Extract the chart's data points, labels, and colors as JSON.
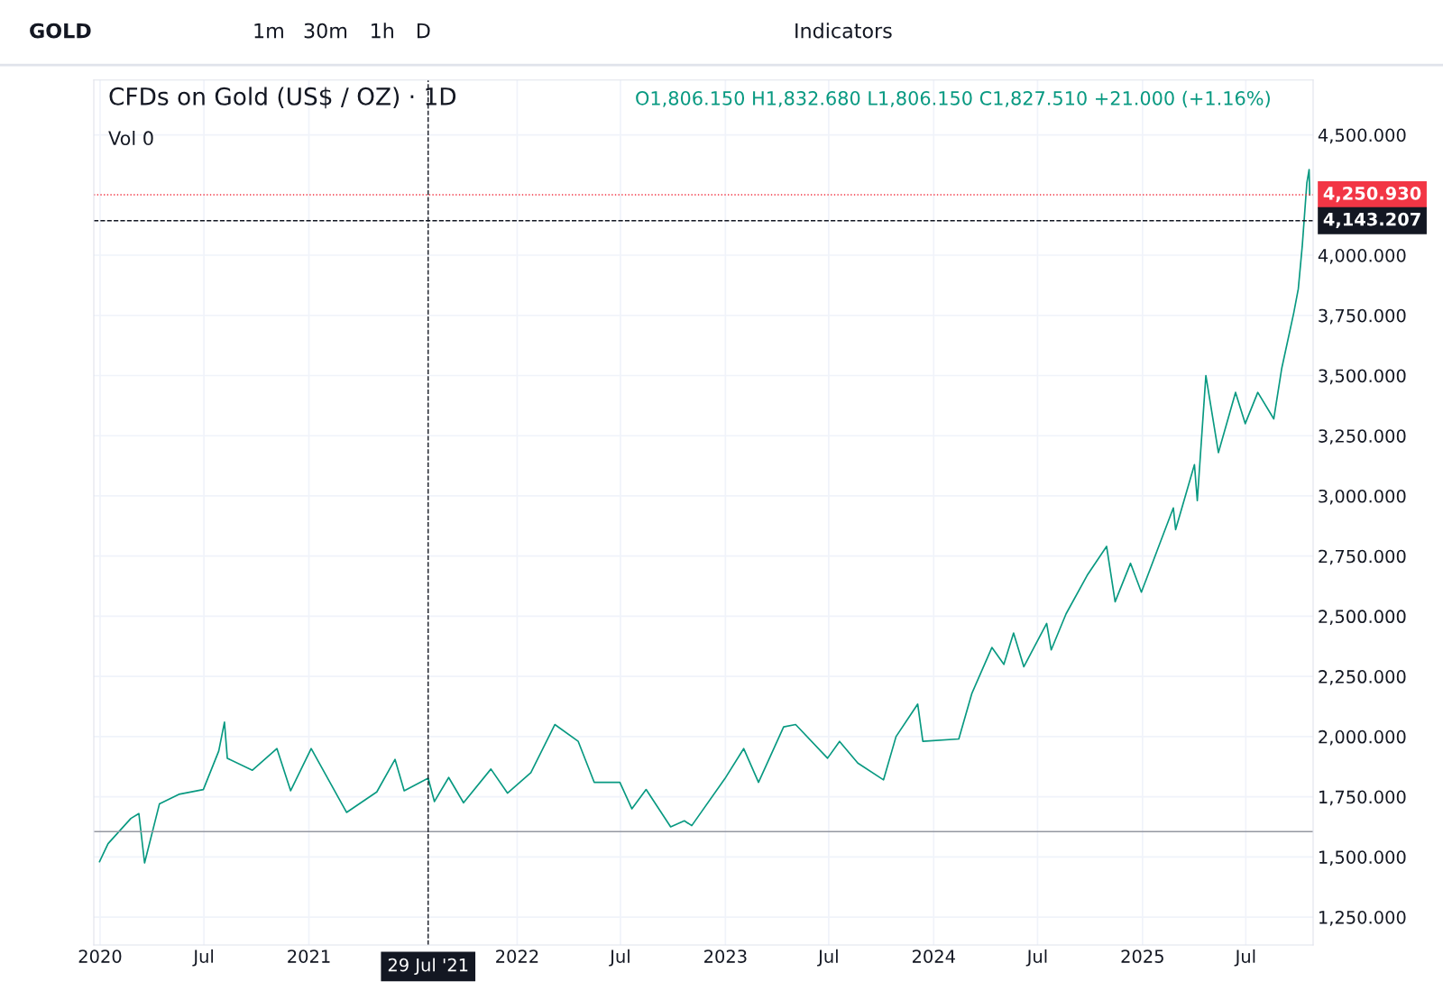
{
  "chart_data": {
    "type": "line",
    "title": "CFDs on Gold (US$ / OZ) · 1D",
    "annotations": [
      "GOLD",
      "1m",
      "30m",
      "1h",
      "D",
      "Indicators",
      "O1,806.150 H1,832.680 L1,806.150 C1,827.510 +21.000 (+1.16%)",
      "Vol 0"
    ],
    "series": [
      {
        "color": "#089981",
        "x": [
          "2019-12-31",
          "2020-01-15",
          "2020-02-24",
          "2020-03-09",
          "2020-03-19",
          "2020-04-14",
          "2020-05-18",
          "2020-06-30",
          "2020-07-27",
          "2020-08-06",
          "2020-08-11",
          "2020-09-24",
          "2020-11-06",
          "2020-11-30",
          "2021-01-05",
          "2021-03-08",
          "2021-04-30",
          "2021-06-01",
          "2021-06-17",
          "2021-07-29",
          "2021-08-09",
          "2021-09-03",
          "2021-09-29",
          "2021-11-16",
          "2021-12-15",
          "2022-01-25",
          "2022-03-08",
          "2022-04-18",
          "2022-05-16",
          "2022-06-30",
          "2022-07-21",
          "2022-08-15",
          "2022-09-27",
          "2022-10-21",
          "2022-11-03",
          "2022-12-31",
          "2023-02-02",
          "2023-02-28",
          "2023-04-13",
          "2023-05-04",
          "2023-06-29",
          "2023-07-20",
          "2023-08-21",
          "2023-10-05",
          "2023-10-27",
          "2023-12-04",
          "2023-12-13",
          "2024-02-14",
          "2024-03-08",
          "2024-04-12",
          "2024-05-03",
          "2024-05-20",
          "2024-06-07",
          "2024-07-17",
          "2024-07-25",
          "2024-08-20",
          "2024-09-26",
          "2024-10-30",
          "2024-11-14",
          "2024-12-11",
          "2024-12-30",
          "2025-01-31",
          "2025-02-24",
          "2025-02-28",
          "2025-04-02",
          "2025-04-07",
          "2025-04-22",
          "2025-05-14",
          "2025-06-13",
          "2025-06-30",
          "2025-07-22",
          "2025-08-19",
          "2025-09-02",
          "2025-09-23",
          "2025-10-01",
          "2025-10-08",
          "2025-10-16",
          "2025-10-20",
          "2025-10-21"
        ],
        "values": [
          1480,
          1555,
          1660,
          1680,
          1475,
          1720,
          1760,
          1780,
          1940,
          2060,
          1910,
          1860,
          1950,
          1775,
          1950,
          1685,
          1770,
          1905,
          1775,
          1827,
          1730,
          1830,
          1725,
          1865,
          1765,
          1850,
          2050,
          1980,
          1810,
          1810,
          1700,
          1780,
          1625,
          1650,
          1630,
          1825,
          1950,
          1810,
          2040,
          2050,
          1910,
          1980,
          1890,
          1820,
          2000,
          2135,
          1980,
          1990,
          2180,
          2370,
          2300,
          2430,
          2290,
          2470,
          2360,
          2510,
          2670,
          2790,
          2560,
          2720,
          2600,
          2800,
          2950,
          2860,
          3130,
          2980,
          3500,
          3180,
          3430,
          3300,
          3430,
          3320,
          3530,
          3760,
          3860,
          4040,
          4300,
          4356,
          4250
        ]
      }
    ],
    "xlim": [
      "2019-12-21",
      "2025-10-27"
    ],
    "xticks": [
      {
        "value": "2020-01-01",
        "label": "2020"
      },
      {
        "value": "2020-07-01",
        "label": "Jul"
      },
      {
        "value": "2021-01-01",
        "label": "2021"
      },
      {
        "value": "2022-01-01",
        "label": "2022"
      },
      {
        "value": "2022-07-01",
        "label": "Jul"
      },
      {
        "value": "2023-01-01",
        "label": "2023"
      },
      {
        "value": "2023-07-01",
        "label": "Jul"
      },
      {
        "value": "2024-01-01",
        "label": "2024"
      },
      {
        "value": "2024-07-01",
        "label": "Jul"
      },
      {
        "value": "2025-01-01",
        "label": "2025"
      },
      {
        "value": "2025-07-01",
        "label": "Jul"
      }
    ],
    "ylim": [
      1134,
      4728
    ],
    "yticks": [
      {
        "value": 1250,
        "label": "1,250.000"
      },
      {
        "value": 1500,
        "label": "1,500.000"
      },
      {
        "value": 1750,
        "label": "1,750.000"
      },
      {
        "value": 2000,
        "label": "2,000.000"
      },
      {
        "value": 2250,
        "label": "2,250.000"
      },
      {
        "value": 2500,
        "label": "2,500.000"
      },
      {
        "value": 2750,
        "label": "2,750.000"
      },
      {
        "value": 3000,
        "label": "3,000.000"
      },
      {
        "value": 3250,
        "label": "3,250.000"
      },
      {
        "value": 3500,
        "label": "3,500.000"
      },
      {
        "value": 3750,
        "label": "3,750.000"
      },
      {
        "value": 4000,
        "label": "4,000.000"
      },
      {
        "value": 4500,
        "label": "4,500.000"
      }
    ],
    "ref_lines": [
      {
        "axis": "y",
        "value": 4250.93,
        "label": "4,250.930",
        "color": "#f23645",
        "line_style": "dotted"
      },
      {
        "axis": "y",
        "value": 4143.207,
        "label": "4,143.207",
        "color": "#131722",
        "line_style": "dashed"
      },
      {
        "axis": "y",
        "value": 1605,
        "color": "#9598a1",
        "line_style": "solid"
      },
      {
        "axis": "x",
        "value": "2021-07-29",
        "label": "29 Jul '21",
        "color": "#131722",
        "line_style": "dashed"
      }
    ],
    "grid": true,
    "legend": false
  }
}
